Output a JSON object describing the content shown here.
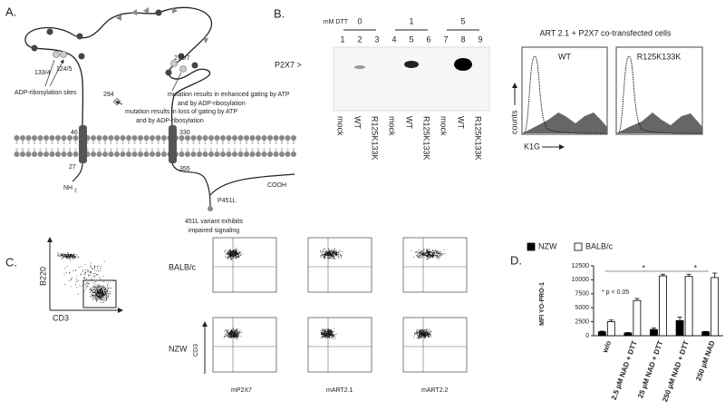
{
  "panel_a": {
    "label": "A.",
    "sites": [
      "133/4",
      "124/5"
    ],
    "sites_caption": "ADP-ribosylation sites",
    "site_278": "278/7",
    "site_294": "294",
    "note_enhanced": [
      "mutation results in enhanced gating by ATP",
      "and by ADP-ribosylation"
    ],
    "note_loss": [
      "mutation results in loss of gating by ATP",
      "and by ADP-ribosylation"
    ],
    "residues": [
      "46",
      "330",
      "27",
      "355"
    ],
    "nh": "NH",
    "nh_sub": "2",
    "cooh": "COOH",
    "p451l": "P451L",
    "note_451": [
      "451L variant exhibits",
      "impaired signaling"
    ]
  },
  "panel_b": {
    "label": "B.",
    "dtt_label": "mM DTT",
    "dtt": [
      "0",
      "1",
      "5"
    ],
    "lanes": [
      "1",
      "2",
      "3",
      "4",
      "5",
      "6",
      "7",
      "8",
      "9"
    ],
    "band_label": "P2X7 >",
    "lane_labels": [
      "mock",
      "WT",
      "R125K133K",
      "mock",
      "WT",
      "R125K133K",
      "mock",
      "WT",
      "R125K133K"
    ],
    "hist_title": "ART 2.1 + P2X7 co-transfected cells",
    "hist_panels": [
      "WT",
      "R125K133K"
    ],
    "y_label": "counts",
    "x_label": "K1G"
  },
  "panel_c": {
    "label": "C.",
    "gate_y": "B220",
    "gate_x": "CD3",
    "rows": [
      "BALB/c",
      "NZW"
    ],
    "y_label": "CD3",
    "x_labels": [
      "mP2X7",
      "mART2.1",
      "mART2.2"
    ]
  },
  "chart_data": {
    "type": "bar",
    "panel_label": "D.",
    "y_label": "MFI YO-PRO-1",
    "categories": [
      "w/o",
      "2.5 µM NAD + DTT",
      "25 µM NAD + DTT",
      "250 µM NAD + DTT",
      "250 µM NAD"
    ],
    "series": [
      {
        "name": "NZW",
        "color": "#000000",
        "values": [
          700,
          500,
          1100,
          2700,
          700
        ],
        "errors": [
          100,
          60,
          250,
          600,
          60
        ]
      },
      {
        "name": "BALB/c",
        "color": "#ffffff",
        "values": [
          2500,
          6300,
          10700,
          10600,
          10400
        ],
        "errors": [
          300,
          350,
          300,
          400,
          800
        ]
      }
    ],
    "ylim": [
      0,
      12500
    ],
    "yticks": [
      0,
      2500,
      5000,
      7500,
      10000,
      12500
    ],
    "significance_label": "*",
    "note": "* p < 0.05"
  }
}
